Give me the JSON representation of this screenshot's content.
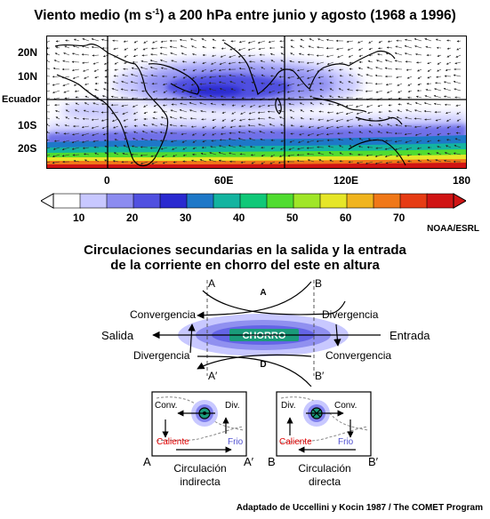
{
  "map": {
    "title_main": "Viento medio (m s",
    "title_sup": "-1",
    "title_rest": ") a 200 hPa entre junio y agosto (1968 a 1996)",
    "lat_labels": [
      "20N",
      "10N",
      "Ecuador",
      "10S",
      "20S"
    ],
    "lon_labels": [
      "0",
      "60E",
      "120E",
      "180"
    ],
    "colorbar": {
      "ticks": [
        "10",
        "20",
        "30",
        "40",
        "50",
        "60",
        "70"
      ],
      "colors": [
        "#ffffff",
        "#c8c8ff",
        "#8c8cf0",
        "#5050e0",
        "#2a2ad0",
        "#1e78c8",
        "#14b4a0",
        "#10c878",
        "#50dc30",
        "#a0e628",
        "#e6e628",
        "#f0b41e",
        "#f07818",
        "#e63c14",
        "#d01414"
      ]
    },
    "source": "NOAA/ESRL"
  },
  "circulation": {
    "title_line1": "Circulaciones secundarias en la salida y la entrada",
    "title_line2": "de la corriente en chorro del este en altura",
    "jet_label": "CHORRO",
    "left_label": "Salida",
    "right_label": "Entrada",
    "convergencia_tl": "Convergencia",
    "divergencia_tr": "Divergencia",
    "divergencia_bl": "Divergencia",
    "convergencia_br": "Convergencia",
    "top_letter": "A",
    "bottom_letter": "D",
    "a_top": "A",
    "b_top": "B",
    "a_prime": "A′",
    "b_prime": "B′"
  },
  "panel_left": {
    "conv": "Conv.",
    "div": "Div.",
    "warm": "Caliente",
    "cold": "Frio",
    "left_end": "A",
    "right_end": "A′",
    "caption_line1": "Circulación",
    "caption_line2": "indirecta"
  },
  "panel_right": {
    "div": "Div.",
    "conv": "Conv.",
    "warm": "Caliente",
    "cold": "Frio",
    "left_end": "B",
    "right_end": "B′",
    "caption_line1": "Circulación",
    "caption_line2": "directa"
  },
  "credit": "Adaptado de Uccellini y Kocin 1987 / The COMET Program",
  "colors": {
    "warm": "#e00000",
    "cold": "#5050d0",
    "jet_core": "#1a9a7a"
  }
}
